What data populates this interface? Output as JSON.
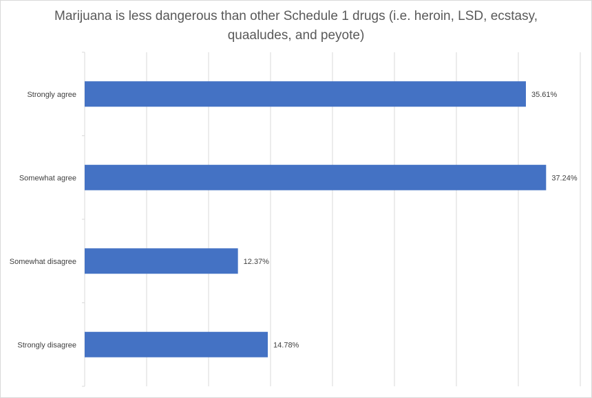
{
  "chart_data": {
    "type": "bar",
    "orientation": "horizontal",
    "title_lines": [
      "Marijuana is less dangerous than other Schedule 1 drugs (i.e. heroin, LSD, ecstasy,",
      "quaaludes, and peyote)"
    ],
    "categories": [
      "Strongly agree",
      "Somewhat agree",
      "Somewhat disagree",
      "Strongly disagree"
    ],
    "values": [
      35.61,
      37.24,
      12.37,
      14.78
    ],
    "value_labels": [
      "35.61%",
      "37.24%",
      "12.37%",
      "14.78%"
    ],
    "xlim": [
      0,
      40
    ],
    "x_gridline_step": 5,
    "grid": true,
    "legend": "none",
    "bar_color": "#4472c4",
    "grid_color": "#d9d9d9"
  }
}
